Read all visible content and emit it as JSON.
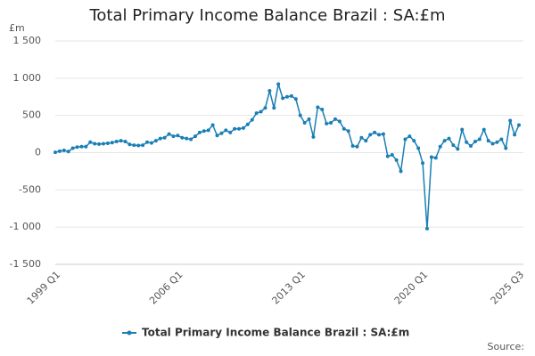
{
  "chart_data": {
    "type": "line",
    "title": "Total Primary Income Balance Brazil : SA:£m",
    "y_unit": "£m",
    "source": "Source:",
    "categories": [
      "1999 Q1",
      null,
      null,
      null,
      null,
      null,
      null,
      null,
      null,
      null,
      null,
      null,
      null,
      null,
      null,
      null,
      null,
      null,
      null,
      null,
      null,
      null,
      null,
      null,
      null,
      null,
      null,
      null,
      "2006 Q1",
      null,
      null,
      null,
      null,
      null,
      null,
      null,
      null,
      null,
      null,
      null,
      null,
      null,
      null,
      null,
      null,
      null,
      null,
      null,
      null,
      null,
      null,
      null,
      null,
      null,
      null,
      null,
      "2013 Q1",
      null,
      null,
      null,
      null,
      null,
      null,
      null,
      null,
      null,
      null,
      null,
      null,
      null,
      null,
      null,
      null,
      null,
      null,
      null,
      null,
      null,
      null,
      null,
      null,
      null,
      null,
      null,
      "2020 Q1",
      null,
      null,
      null,
      null,
      null,
      null,
      null,
      null,
      null,
      null,
      null,
      null,
      null,
      null,
      null,
      null,
      null,
      null,
      null,
      null,
      null,
      "2025 Q3"
    ],
    "series": [
      {
        "name": "Total Primary Income Balance Brazil : SA:£m",
        "color": "#1a7fb5",
        "values": [
          5,
          20,
          30,
          15,
          60,
          75,
          80,
          80,
          140,
          120,
          115,
          120,
          125,
          135,
          150,
          160,
          150,
          110,
          100,
          95,
          100,
          140,
          130,
          160,
          190,
          200,
          250,
          220,
          230,
          200,
          190,
          180,
          220,
          270,
          290,
          300,
          370,
          230,
          260,
          300,
          270,
          320,
          320,
          330,
          380,
          440,
          530,
          550,
          600,
          830,
          600,
          920,
          730,
          750,
          760,
          720,
          500,
          400,
          450,
          210,
          610,
          580,
          390,
          400,
          450,
          420,
          320,
          290,
          90,
          80,
          200,
          160,
          240,
          270,
          240,
          250,
          -50,
          -30,
          -100,
          -250,
          180,
          220,
          160,
          60,
          -140,
          -1020,
          -60,
          -70,
          80,
          160,
          190,
          100,
          50,
          310,
          140,
          90,
          150,
          180,
          310,
          160,
          120,
          140,
          180,
          60,
          430,
          240,
          370
        ]
      }
    ],
    "ylim": [
      -1500,
      1500
    ],
    "yticks": [
      {
        "value": 1500,
        "label": "1 500"
      },
      {
        "value": 1000,
        "label": "1 000"
      },
      500,
      0,
      -500,
      {
        "value": -1000,
        "label": "-1 000"
      },
      {
        "value": -1500,
        "label": "-1 500"
      }
    ],
    "grid": true
  }
}
